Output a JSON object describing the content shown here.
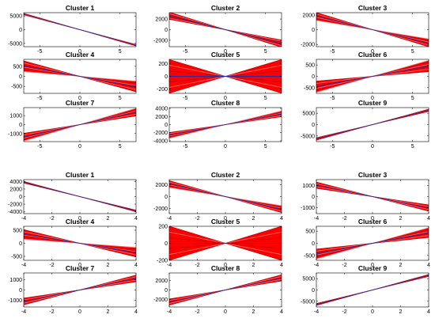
{
  "chart_data": [
    {
      "type": "line",
      "title": "Cluster 1",
      "xticks": [
        "-5",
        "0",
        "5"
      ],
      "xlim": [
        -7,
        7
      ],
      "xtickvals": [
        -5,
        0,
        5
      ],
      "yticks": [
        "-5000",
        "0",
        "5000"
      ],
      "ytickvals": [
        -5000,
        0,
        5000
      ],
      "ylim": [
        -6200,
        6200
      ],
      "slopes": [
        -850,
        -800,
        -780,
        -760
      ]
    },
    {
      "type": "line",
      "title": "Cluster 2",
      "xticks": [
        "-5",
        "0",
        "5"
      ],
      "xlim": [
        -7,
        7
      ],
      "xtickvals": [
        -5,
        0,
        5
      ],
      "yticks": [
        "2000",
        "0",
        "-2000"
      ],
      "ytickvals": [
        2000,
        0,
        -2000
      ],
      "ylim": [
        -3200,
        3200
      ],
      "slopes": [
        -470,
        -430,
        -400,
        -370,
        -340,
        -310,
        -280
      ]
    },
    {
      "type": "line",
      "title": "Cluster 3",
      "xticks": [
        "-5",
        "0",
        "5"
      ],
      "xlim": [
        -7,
        7
      ],
      "xtickvals": [
        -5,
        0,
        5
      ],
      "yticks": [
        "2000",
        "0",
        "-2000"
      ],
      "ytickvals": [
        2000,
        0,
        -2000
      ],
      "ylim": [
        -2300,
        2300
      ],
      "slopes": [
        -330,
        -300,
        -270,
        -240,
        -210,
        -180
      ]
    },
    {
      "type": "line",
      "title": "Cluster 4",
      "xticks": [
        "-5",
        "0",
        "5"
      ],
      "xlim": [
        -7,
        7
      ],
      "xtickvals": [
        -5,
        0,
        5
      ],
      "yticks": [
        "500",
        "0",
        "-500"
      ],
      "ytickvals": [
        500,
        0,
        -500
      ],
      "ylim": [
        -850,
        850
      ],
      "slopes": [
        -110,
        -95,
        -80,
        -65,
        -50,
        -35
      ]
    },
    {
      "type": "line",
      "title": "Cluster 5",
      "xticks": [
        "-5",
        "0",
        "5"
      ],
      "xlim": [
        -7,
        7
      ],
      "xtickvals": [
        -5,
        0,
        5
      ],
      "yticks": [
        "200",
        "0",
        "-200"
      ],
      "ytickvals": [
        200,
        0,
        -200
      ],
      "ylim": [
        -270,
        270
      ],
      "slopes": [
        -38,
        -25,
        -12,
        0,
        12,
        25,
        38
      ]
    },
    {
      "type": "line",
      "title": "Cluster 6",
      "xticks": [
        "-5",
        "0",
        "5"
      ],
      "xlim": [
        -7,
        7
      ],
      "xtickvals": [
        -5,
        0,
        5
      ],
      "yticks": [
        "500",
        "0",
        "-500"
      ],
      "ytickvals": [
        500,
        0,
        -500
      ],
      "ylim": [
        -750,
        750
      ],
      "slopes": [
        30,
        45,
        60,
        75,
        90,
        100
      ]
    },
    {
      "type": "line",
      "title": "Cluster 7",
      "xticks": [
        "-5",
        "0",
        "5"
      ],
      "xlim": [
        -7,
        7
      ],
      "xtickvals": [
        -5,
        0,
        5
      ],
      "yticks": [
        "1000",
        "0",
        "-1000"
      ],
      "ytickvals": [
        1000,
        0,
        -1000
      ],
      "ylim": [
        -1900,
        1900
      ],
      "slopes": [
        140,
        165,
        190,
        215,
        240,
        260
      ]
    },
    {
      "type": "line",
      "title": "Cluster 8",
      "xticks": [
        "-5",
        "0",
        "5"
      ],
      "xlim": [
        -7,
        7
      ],
      "xtickvals": [
        -5,
        0,
        5
      ],
      "yticks": [
        "4000",
        "2000",
        "0",
        "-2000",
        "-4000"
      ],
      "ytickvals": [
        4000,
        2000,
        0,
        -2000,
        -4000
      ],
      "ylim": [
        -4200,
        4200
      ],
      "slopes": [
        280,
        320,
        360,
        400,
        440,
        480
      ]
    },
    {
      "type": "line",
      "title": "Cluster 9",
      "xticks": [
        "-5",
        "0",
        "5"
      ],
      "xlim": [
        -7,
        7
      ],
      "xtickvals": [
        -5,
        0,
        5
      ],
      "yticks": [
        "5000",
        "0",
        "-5000"
      ],
      "ytickvals": [
        5000,
        0,
        -5000
      ],
      "ylim": [
        -7500,
        7500
      ],
      "slopes": [
        830,
        900,
        970
      ]
    },
    {
      "type": "line",
      "title": "Cluster 1",
      "xticks": [
        "-4",
        "-2",
        "0",
        "2",
        "4"
      ],
      "xlim": [
        -4,
        4
      ],
      "xtickvals": [
        -4,
        -2,
        0,
        2,
        4
      ],
      "yticks": [
        "4000",
        "2000",
        "0",
        "-2000",
        "-4000"
      ],
      "ytickvals": [
        4000,
        2000,
        0,
        -2000,
        -4000
      ],
      "ylim": [
        -4500,
        4500
      ],
      "slopes": [
        -1000,
        -950,
        -900
      ]
    },
    {
      "type": "line",
      "title": "Cluster 2",
      "xticks": [
        "-4",
        "-2",
        "0",
        "2",
        "4"
      ],
      "xlim": [
        -4,
        4
      ],
      "xtickvals": [
        -4,
        -2,
        0,
        2,
        4
      ],
      "yticks": [
        "2000",
        "0",
        "-2000"
      ],
      "ytickvals": [
        2000,
        0,
        -2000
      ],
      "ylim": [
        -2900,
        2900
      ],
      "slopes": [
        -680,
        -620,
        -560,
        -500,
        -440,
        -390
      ]
    },
    {
      "type": "line",
      "title": "Cluster 3",
      "xticks": [
        "-4",
        "-2",
        "0",
        "2",
        "4"
      ],
      "xlim": [
        -4,
        4
      ],
      "xtickvals": [
        -4,
        -2,
        0,
        2,
        4
      ],
      "yticks": [
        "1000",
        "0",
        "-1000"
      ],
      "ytickvals": [
        1000,
        0,
        -1000
      ],
      "ylim": [
        -1550,
        1550
      ],
      "slopes": [
        -330,
        -295,
        -260,
        -225,
        -190
      ]
    },
    {
      "type": "line",
      "title": "Cluster 4",
      "xticks": [
        "-4",
        "-2",
        "0",
        "2",
        "4"
      ],
      "xlim": [
        -4,
        4
      ],
      "xtickvals": [
        -4,
        -2,
        0,
        2,
        4
      ],
      "yticks": [
        "500",
        "0",
        "-500"
      ],
      "ytickvals": [
        500,
        0,
        -500
      ],
      "ylim": [
        -650,
        650
      ],
      "slopes": [
        -130,
        -110,
        -95,
        -80,
        -60,
        -40
      ]
    },
    {
      "type": "line",
      "title": "Cluster 5",
      "xticks": [
        "-4",
        "-2",
        "0",
        "2",
        "4"
      ],
      "xlim": [
        -4,
        4
      ],
      "xtickvals": [
        -4,
        -2,
        0,
        2,
        4
      ],
      "yticks": [
        "200",
        "0",
        "-200"
      ],
      "ytickvals": [
        200,
        0,
        -200
      ],
      "ylim": [
        -200,
        200
      ],
      "slopes": [
        -50,
        -33,
        -16,
        0,
        16,
        33,
        50
      ]
    },
    {
      "type": "line",
      "title": "Cluster 6",
      "xticks": [
        "-4",
        "-2",
        "0",
        "2",
        "4"
      ],
      "xlim": [
        -4,
        4
      ],
      "xtickvals": [
        -4,
        -2,
        0,
        2,
        4
      ],
      "yticks": [
        "500",
        "0",
        "-500"
      ],
      "ytickvals": [
        500,
        0,
        -500
      ],
      "ylim": [
        -700,
        700
      ],
      "slopes": [
        60,
        80,
        100,
        120,
        140,
        160
      ]
    },
    {
      "type": "line",
      "title": "Cluster 7",
      "xticks": [
        "-4",
        "-2",
        "0",
        "2",
        "4"
      ],
      "xlim": [
        -4,
        4
      ],
      "xtickvals": [
        -4,
        -2,
        0,
        2,
        4
      ],
      "yticks": [
        "1000",
        "0",
        "-1000"
      ],
      "ytickvals": [
        1000,
        0,
        -1000
      ],
      "ylim": [
        -1650,
        1650
      ],
      "slopes": [
        200,
        240,
        280,
        320,
        360
      ]
    },
    {
      "type": "line",
      "title": "Cluster 8",
      "xticks": [
        "-4",
        "-2",
        "0",
        "2",
        "4"
      ],
      "xlim": [
        -4,
        4
      ],
      "xtickvals": [
        -4,
        -2,
        0,
        2,
        4
      ],
      "yticks": [
        "2000",
        "0",
        "-2000"
      ],
      "ytickvals": [
        2000,
        0,
        -2000
      ],
      "ylim": [
        -3600,
        3600
      ],
      "slopes": [
        480,
        560,
        640,
        720,
        800
      ]
    },
    {
      "type": "line",
      "title": "Cluster 9",
      "xticks": [
        "-4",
        "-2",
        "0",
        "2",
        "4"
      ],
      "xlim": [
        -4,
        4
      ],
      "xtickvals": [
        -4,
        -2,
        0,
        2,
        4
      ],
      "yticks": [
        "5000",
        "0",
        "-5000"
      ],
      "ytickvals": [
        5000,
        0,
        -5000
      ],
      "ylim": [
        -7500,
        7500
      ],
      "slopes": [
        1500,
        1600,
        1700
      ]
    }
  ],
  "colors": {
    "band": "#ff0000",
    "line_dark": "#c80000",
    "line_light": "#ff6e6e",
    "center": "#2a2a9a",
    "axis": "#000000"
  }
}
